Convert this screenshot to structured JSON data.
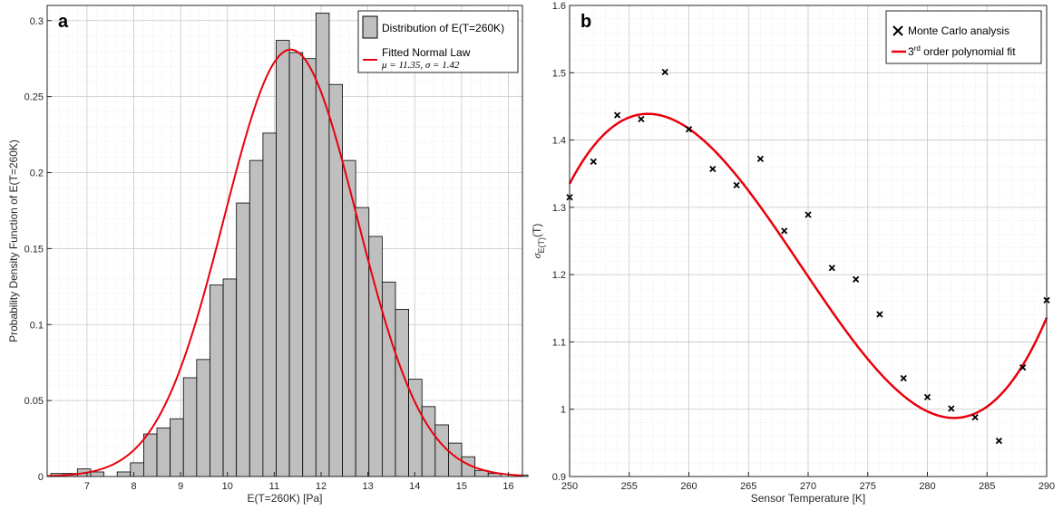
{
  "chart_data": [
    {
      "type": "bar",
      "panel_label": "a",
      "xlabel": "E(T=260K) [Pa]",
      "ylabel": "Probability Density Function of E(T=260K)",
      "xlim": [
        6.15,
        16.3
      ],
      "ylim": [
        0,
        0.31
      ],
      "xticks": [
        7,
        8,
        9,
        10,
        11,
        12,
        13,
        14,
        15,
        16
      ],
      "yticks": [
        0,
        0.05,
        0.1,
        0.15,
        0.2,
        0.25,
        0.3
      ],
      "tick_labels_x": [
        "7",
        "8",
        "9",
        "10",
        "11",
        "12",
        "13",
        "14",
        "15",
        "16"
      ],
      "tick_labels_y": [
        "0",
        "0.05",
        "0.1",
        "0.15",
        "0.2",
        "0.25",
        "0.3"
      ],
      "grid": true,
      "bin_width": 0.283,
      "bin_start": 6.23,
      "values": [
        0.002,
        0.002,
        0.005,
        0.003,
        0.0,
        0.003,
        0.009,
        0.028,
        0.032,
        0.038,
        0.065,
        0.077,
        0.126,
        0.13,
        0.18,
        0.208,
        0.226,
        0.287,
        0.279,
        0.275,
        0.305,
        0.258,
        0.208,
        0.177,
        0.158,
        0.128,
        0.11,
        0.064,
        0.046,
        0.034,
        0.022,
        0.013,
        0.004,
        0.002,
        0.0,
        0.001
      ],
      "fit": {
        "mu": 11.35,
        "sigma": 1.42
      },
      "legend": {
        "placement": "top-right",
        "entries": [
          {
            "label": "Distribution of E(T=260K)",
            "color": "#bfbfbf"
          },
          {
            "label": "Fitted Normal Law",
            "sublabel": "μ = 11.35, σ = 1.42",
            "color": "#e8000b"
          }
        ]
      }
    },
    {
      "type": "scatter",
      "panel_label": "b",
      "xlabel": "Sensor Temperature [K]",
      "ylabel_main": "σ",
      "ylabel_sub": "E(T)",
      "ylabel_tail": "(T)",
      "xlim": [
        250,
        290
      ],
      "ylim": [
        0.9,
        1.6
      ],
      "xticks": [
        250,
        255,
        260,
        265,
        270,
        275,
        280,
        285,
        290
      ],
      "yticks": [
        0.9,
        1.0,
        1.1,
        1.2,
        1.3,
        1.4,
        1.5,
        1.6
      ],
      "tick_labels_x": [
        "250",
        "255",
        "260",
        "265",
        "270",
        "275",
        "280",
        "285",
        "290"
      ],
      "tick_labels_y": [
        "0.9",
        "1",
        "1.1",
        "1.2",
        "1.3",
        "1.4",
        "1.5",
        "1.6"
      ],
      "grid": true,
      "x": [
        250,
        252,
        254,
        256,
        258,
        260,
        262,
        264,
        266,
        268,
        270,
        272,
        274,
        276,
        278,
        280,
        282,
        284,
        286,
        288,
        290
      ],
      "y": [
        1.315,
        1.368,
        1.437,
        1.431,
        1.501,
        1.416,
        1.357,
        1.333,
        1.372,
        1.265,
        1.289,
        1.21,
        1.193,
        1.141,
        1.046,
        1.018,
        1.001,
        0.988,
        0.953,
        1.062,
        1.162
      ],
      "fit": {
        "label": "3rd order polynomial fit",
        "control_x": [
          250,
          258.3,
          283.6,
          290
        ],
        "control_y": [
          1.335,
          1.433,
          0.991,
          1.136
        ]
      },
      "legend": {
        "placement": "top-right",
        "entries": [
          {
            "label": "Monte Carlo analysis",
            "color": "#000000"
          },
          {
            "label_prefix": "3",
            "label_sup": "rd",
            "label_suffix": " order polynomial fit",
            "color": "#e8000b"
          }
        ]
      }
    }
  ],
  "colors": {
    "fit_line": "#e8000b",
    "bar_fill": "#bfbfbf",
    "bar_edge": "#000000",
    "grid": "#c8c8c8"
  }
}
